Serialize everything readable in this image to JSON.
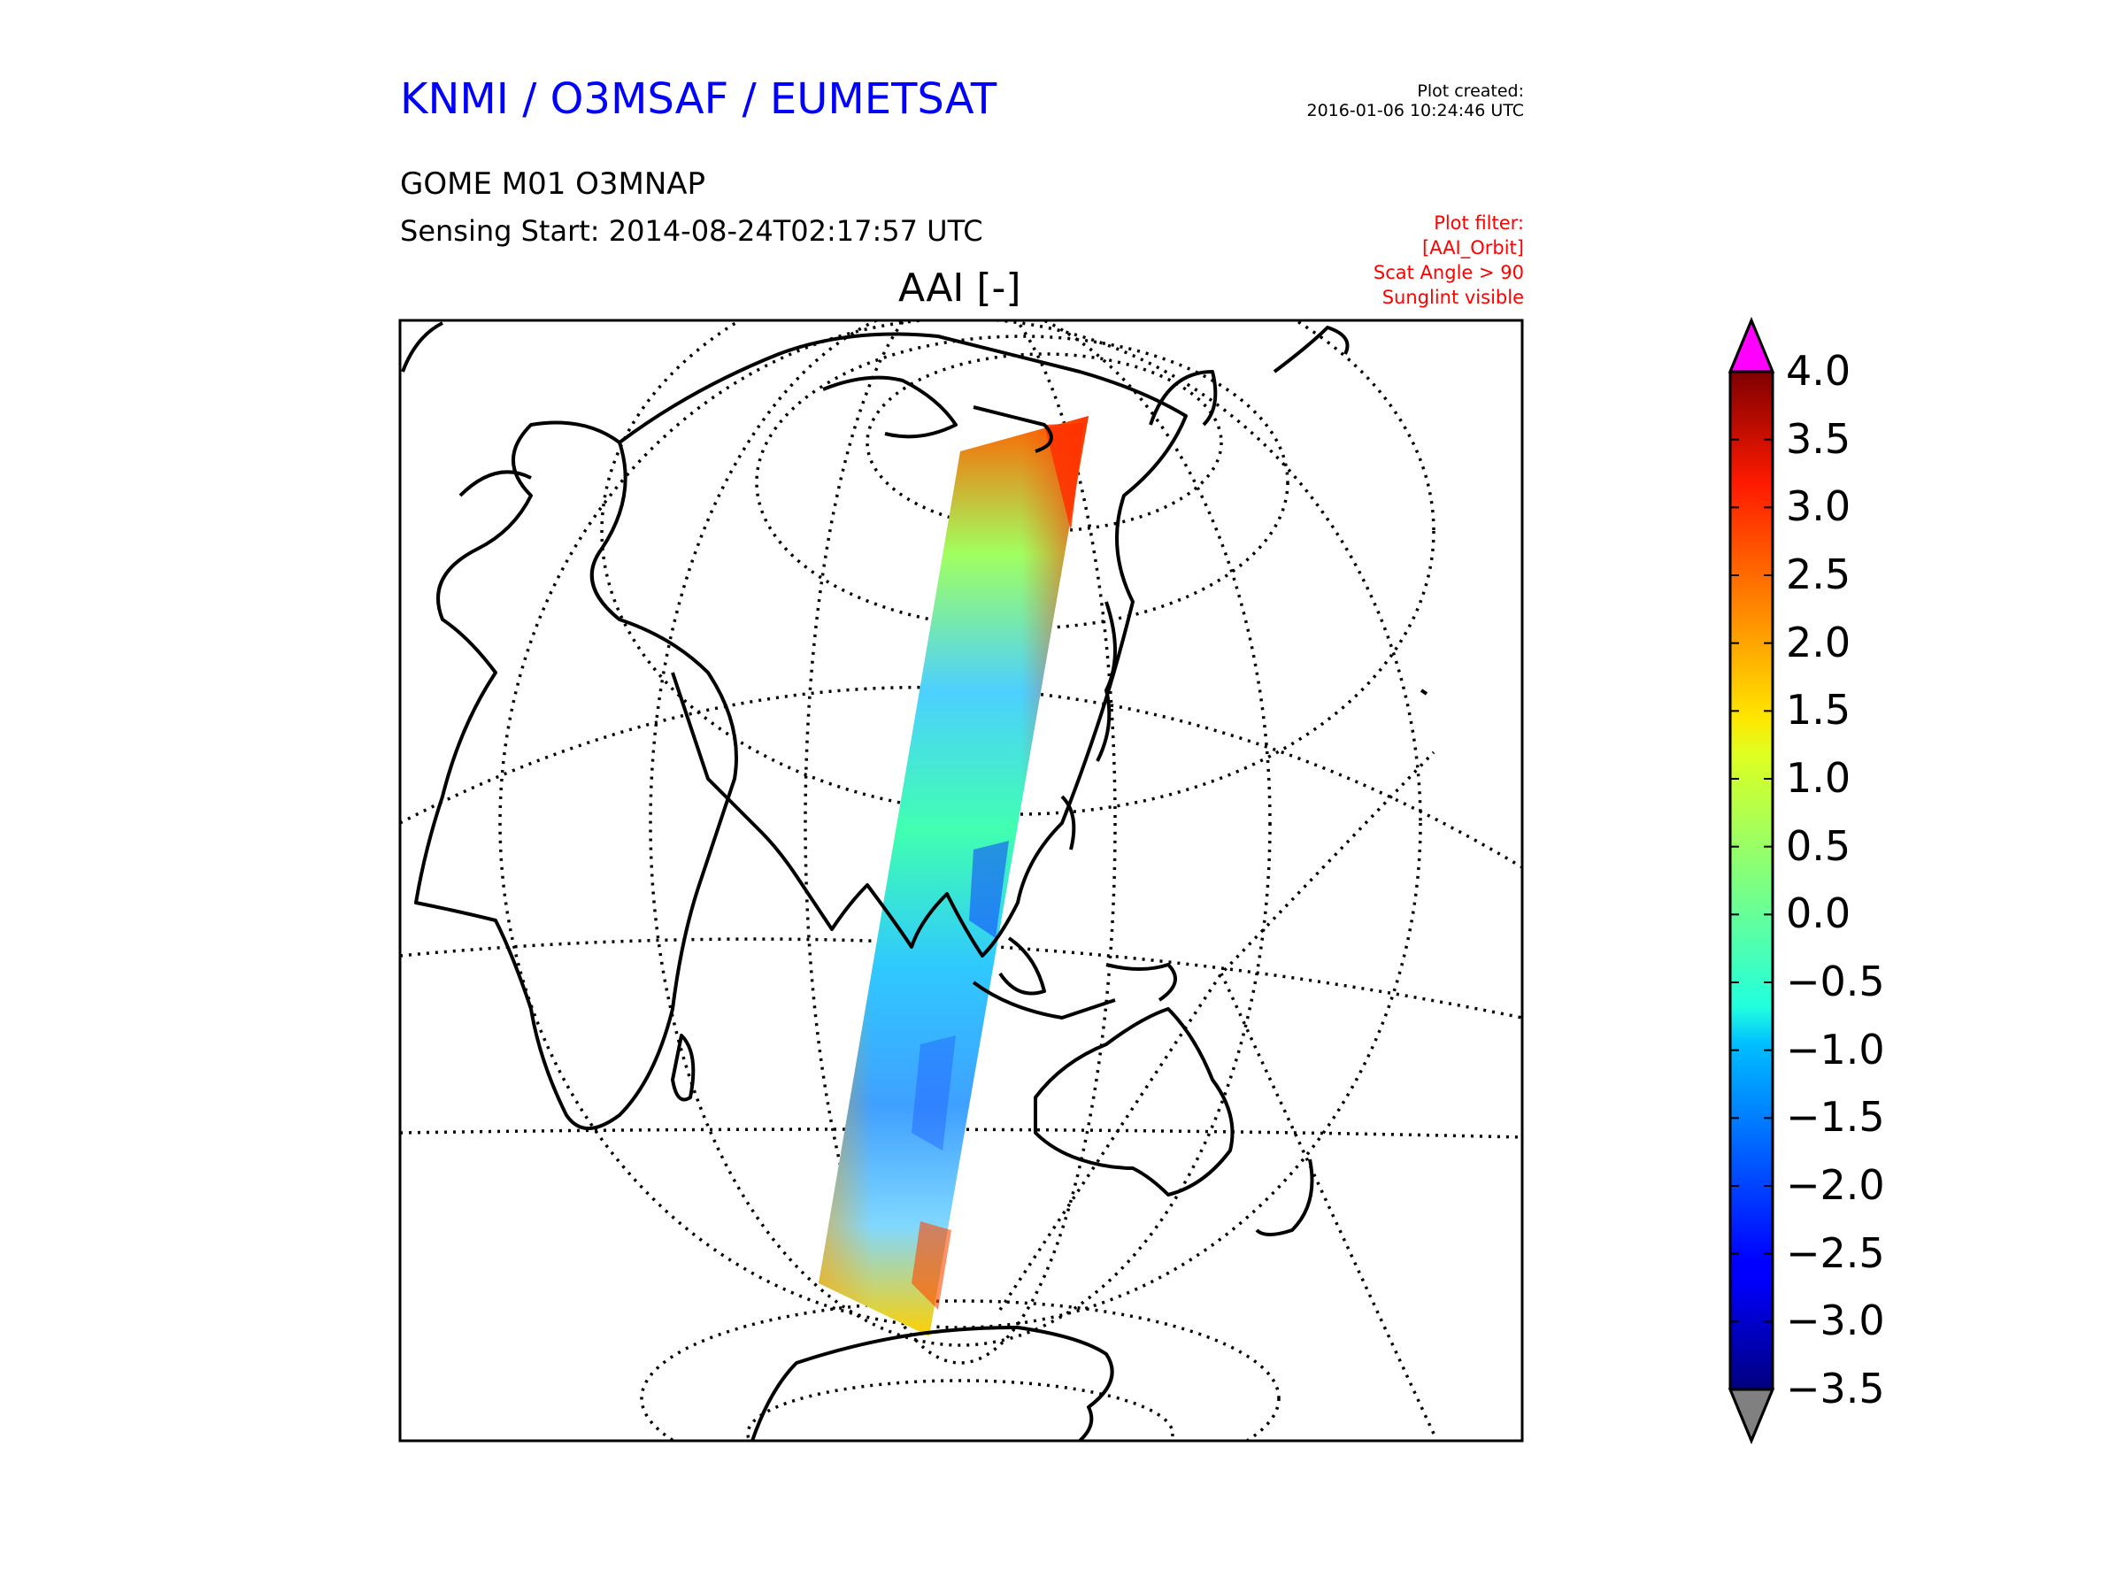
{
  "header": {
    "org_title": "KNMI / O3MSAF / EUMETSAT",
    "created_label": "Plot created:",
    "created_time": "2016-01-06 10:24:46 UTC",
    "product": "GOME M01 O3MNAP",
    "sensing": "Sensing Start: 2014-08-24T02:17:57 UTC",
    "plot_title": "AAI [-]"
  },
  "filter": {
    "lines": [
      "Plot filter:",
      "[AAI_Orbit]",
      "Scat Angle > 90",
      "Sunglint visible"
    ]
  },
  "colorbar": {
    "min": -3.5,
    "max": 4.0,
    "ticks": [
      "4.0",
      "3.5",
      "3.0",
      "2.5",
      "2.0",
      "1.5",
      "1.0",
      "0.5",
      "0.0",
      "−0.5",
      "−1.0",
      "−1.5",
      "−2.0",
      "−2.5",
      "−3.0",
      "−3.5"
    ],
    "over_color": "#ff00ff",
    "under_color": "#808080",
    "colormap": "jet"
  },
  "colors": {
    "title_blue": "#0000ff",
    "filter_red": "#ff0000"
  }
}
